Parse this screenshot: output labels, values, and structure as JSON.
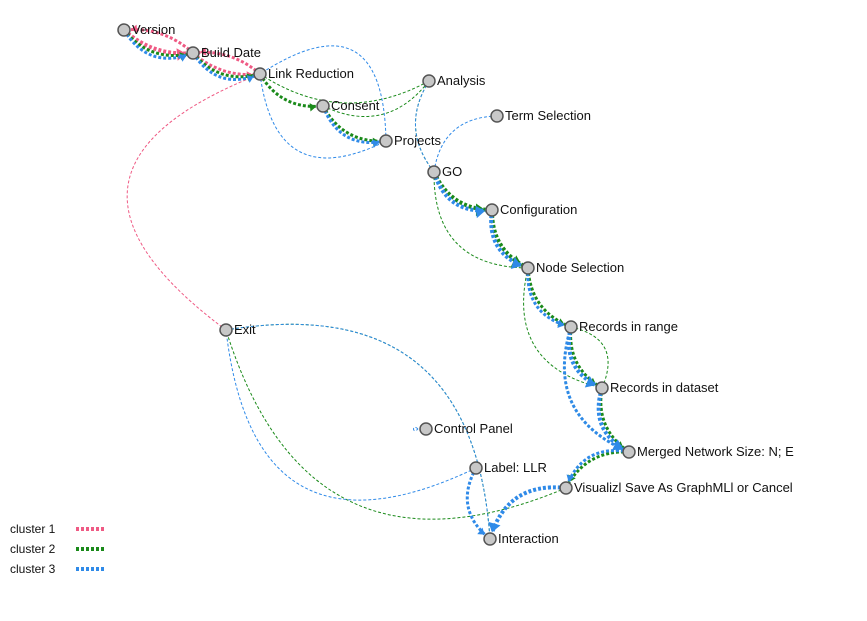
{
  "colors": {
    "cluster1": "#ef5a84",
    "cluster2": "#1a8a1a",
    "cluster3": "#2f8ae8",
    "node_fill": "#c8c8c8",
    "node_stroke": "#555555"
  },
  "nodes": [
    {
      "id": "version",
      "label": "Version"
    },
    {
      "id": "build_date",
      "label": "Build Date"
    },
    {
      "id": "link_reduction",
      "label": "Link Reduction"
    },
    {
      "id": "analysis",
      "label": "Analysis"
    },
    {
      "id": "consent",
      "label": "Consent"
    },
    {
      "id": "term_selection",
      "label": "Term Selection"
    },
    {
      "id": "projects",
      "label": "Projects"
    },
    {
      "id": "go",
      "label": "GO"
    },
    {
      "id": "configuration",
      "label": "Configuration"
    },
    {
      "id": "node_selection",
      "label": "Node Selection"
    },
    {
      "id": "exit",
      "label": "Exit"
    },
    {
      "id": "records_in_range",
      "label": "Records in range"
    },
    {
      "id": "records_in_dataset",
      "label": "Records in dataset"
    },
    {
      "id": "control_panel",
      "label": "Control Panel"
    },
    {
      "id": "merged_network",
      "label": "Merged Network Size: N; E"
    },
    {
      "id": "label_llr",
      "label": "Label: LLR"
    },
    {
      "id": "visualize",
      "label": "Visualizl Save As GraphMLl or Cancel"
    },
    {
      "id": "interaction",
      "label": "Interaction"
    }
  ],
  "edges": [
    {
      "from": "version",
      "to": "build_date",
      "cluster": 1,
      "weight": 3
    },
    {
      "from": "build_date",
      "to": "version",
      "cluster": 1,
      "weight": 2
    },
    {
      "from": "build_date",
      "to": "link_reduction",
      "cluster": 1,
      "weight": 2
    },
    {
      "from": "link_reduction",
      "to": "build_date",
      "cluster": 1,
      "weight": 2
    },
    {
      "from": "link_reduction",
      "to": "exit",
      "cluster": 1,
      "weight": 1
    },
    {
      "from": "version",
      "to": "build_date",
      "cluster": 2,
      "weight": 2
    },
    {
      "from": "build_date",
      "to": "link_reduction",
      "cluster": 2,
      "weight": 2
    },
    {
      "from": "link_reduction",
      "to": "consent",
      "cluster": 2,
      "weight": 2
    },
    {
      "from": "consent",
      "to": "projects",
      "cluster": 2,
      "weight": 2
    },
    {
      "from": "link_reduction",
      "to": "analysis",
      "cluster": 2,
      "weight": 1
    },
    {
      "from": "consent",
      "to": "analysis",
      "cluster": 2,
      "weight": 1
    },
    {
      "from": "analysis",
      "to": "go",
      "cluster": 2,
      "weight": 1
    },
    {
      "from": "go",
      "to": "configuration",
      "cluster": 2,
      "weight": 3
    },
    {
      "from": "configuration",
      "to": "node_selection",
      "cluster": 2,
      "weight": 3
    },
    {
      "from": "go",
      "to": "node_selection",
      "cluster": 2,
      "weight": 1
    },
    {
      "from": "node_selection",
      "to": "records_in_range",
      "cluster": 2,
      "weight": 2
    },
    {
      "from": "node_selection",
      "to": "records_in_dataset",
      "cluster": 2,
      "weight": 1
    },
    {
      "from": "records_in_range",
      "to": "records_in_dataset",
      "cluster": 2,
      "weight": 2
    },
    {
      "from": "records_in_dataset",
      "to": "records_in_range",
      "cluster": 2,
      "weight": 1
    },
    {
      "from": "records_in_dataset",
      "to": "merged_network",
      "cluster": 2,
      "weight": 2
    },
    {
      "from": "records_in_range",
      "to": "merged_network",
      "cluster": 2,
      "weight": 1
    },
    {
      "from": "merged_network",
      "to": "visualize",
      "cluster": 2,
      "weight": 2
    },
    {
      "from": "exit",
      "to": "interaction",
      "cluster": 2,
      "weight": 1
    },
    {
      "from": "visualize",
      "to": "exit",
      "cluster": 2,
      "weight": 1
    },
    {
      "from": "version",
      "to": "build_date",
      "cluster": 3,
      "weight": 2
    },
    {
      "from": "build_date",
      "to": "link_reduction",
      "cluster": 3,
      "weight": 2
    },
    {
      "from": "link_reduction",
      "to": "projects",
      "cluster": 3,
      "weight": 1
    },
    {
      "from": "consent",
      "to": "projects",
      "cluster": 3,
      "weight": 2
    },
    {
      "from": "projects",
      "to": "link_reduction",
      "cluster": 3,
      "weight": 1
    },
    {
      "from": "analysis",
      "to": "go",
      "cluster": 3,
      "weight": 1
    },
    {
      "from": "term_selection",
      "to": "go",
      "cluster": 3,
      "weight": 1
    },
    {
      "from": "go",
      "to": "configuration",
      "cluster": 3,
      "weight": 3
    },
    {
      "from": "configuration",
      "to": "node_selection",
      "cluster": 3,
      "weight": 3
    },
    {
      "from": "node_selection",
      "to": "records_in_range",
      "cluster": 3,
      "weight": 2
    },
    {
      "from": "records_in_range",
      "to": "records_in_dataset",
      "cluster": 3,
      "weight": 3
    },
    {
      "from": "records_in_range",
      "to": "merged_network",
      "cluster": 3,
      "weight": 2
    },
    {
      "from": "records_in_dataset",
      "to": "merged_network",
      "cluster": 3,
      "weight": 3
    },
    {
      "from": "merged_network",
      "to": "visualize",
      "cluster": 3,
      "weight": 2
    },
    {
      "from": "visualize",
      "to": "interaction",
      "cluster": 3,
      "weight": 3
    },
    {
      "from": "label_llr",
      "to": "interaction",
      "cluster": 3,
      "weight": 2
    },
    {
      "from": "exit",
      "to": "interaction",
      "cluster": 3,
      "weight": 1
    },
    {
      "from": "label_llr",
      "to": "exit",
      "cluster": 3,
      "weight": 1
    },
    {
      "from": "control_panel",
      "to": "control_panel",
      "cluster": 3,
      "weight": 1
    }
  ],
  "legend": [
    {
      "label": "cluster 1",
      "cluster": 1
    },
    {
      "label": "cluster 2",
      "cluster": 2
    },
    {
      "label": "cluster 3",
      "cluster": 3
    }
  ]
}
